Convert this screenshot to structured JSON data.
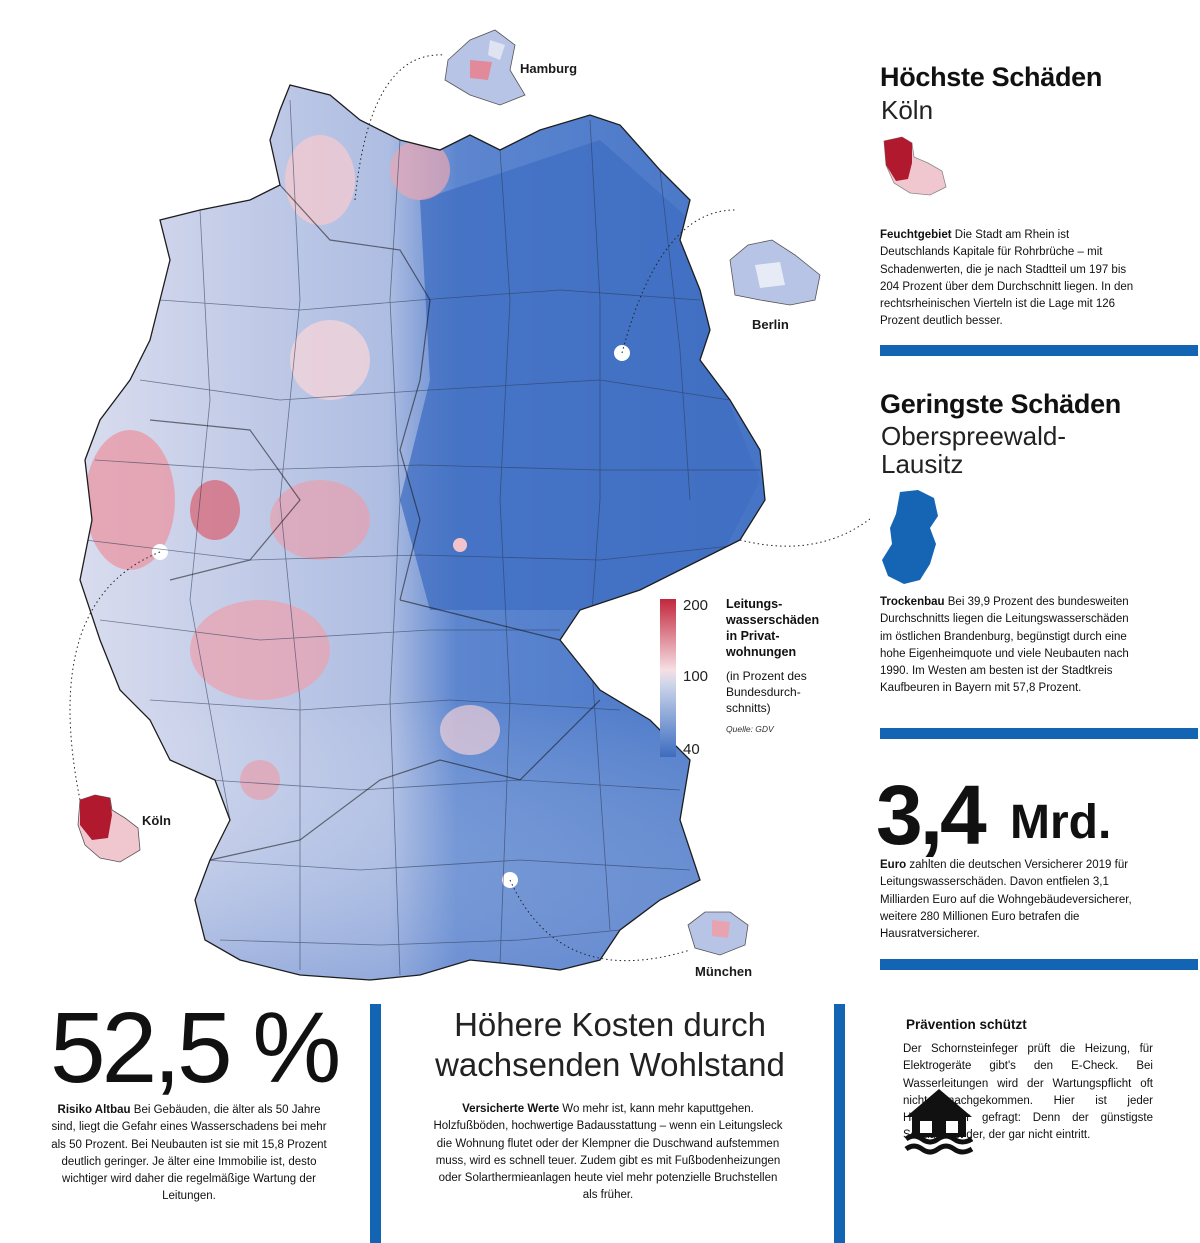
{
  "map": {
    "legend": {
      "title": "Leitungs­wasserschä­den in Privat­wohnungen",
      "subtitle": "(in Prozent des Bundesdurch­schnitts)",
      "source": "Quelle: GDV",
      "max": "200",
      "mid": "100",
      "min": "40",
      "colors": {
        "high": "#c2273c",
        "mid": "#f6dfe5",
        "low": "#3d6cc0"
      }
    },
    "city_labels": {
      "hamburg": "Hamburg",
      "berlin": "Berlin",
      "koeln": "Köln",
      "muenchen": "München"
    }
  },
  "highest": {
    "title": "Höchste Schäden",
    "place": "Köln",
    "lead": "Feuchtgebiet",
    "text": "Die Stadt am Rhein ist Deutschlands Kapitale für Rohrbrüche – mit Schadenwerten, die je nach Stadtteil um 197 bis 204 Prozent über dem Durchschnitt liegen. In den rechtsrheinischen Vierteln ist die Lage mit 126 Prozent deutlich besser."
  },
  "lowest": {
    "title": "Geringste Schäden",
    "place_line1": "Oberspreewald-",
    "place_line2": "Lausitz",
    "lead": "Trockenbau",
    "text": "Bei 39,9 Prozent des bundesweiten Durchschnitts liegen die Leitungswasserschäden im östlichen Brandenburg, begünstigt durch eine hohe Eigenheimquote und viele Neubauten nach 1990. Im Westen am besten ist der Stadtkreis Kaufbeuren in Bayern mit 57,8 Prozent."
  },
  "total": {
    "number": "3,4",
    "unit": "Mrd.",
    "lead": "Euro",
    "text": "zahlten die deutschen Versicherer 2019 für Leitungswasserschäden. Davon entfielen 3,1 Milliarden Euro auf die Wohngebäudeversicherer, weitere 280 Millionen Euro betrafen die Hausratversicherer."
  },
  "altbau": {
    "number": "52,5 %",
    "lead": "Risiko Altbau",
    "text": "Bei Gebäuden, die älter als 50 Jahre sind, liegt die Gefahr eines Wasserschadens bei mehr als 50 Prozent. Bei Neubauten ist sie mit 15,8 Prozent deutlich geringer. Je älter eine Immobilie ist, desto wichtiger wird daher die regelmäßige Wartung der Leitungen."
  },
  "costs": {
    "title_line1": "Höhere Kosten durch",
    "title_line2": "wachsenden Wohlstand",
    "lead": "Versicherte Werte",
    "text": "Wo mehr ist, kann mehr kaputtgehen. Holzfußböden, hochwertige Badausstattung – wenn ein Leitungsleck die Wohnung flutet oder der Klempner die Duschwand aufstemmen muss, wird es schnell teuer. Zudem gibt es mit Fußbodenheizungen oder Solarthermieanlagen heute viel mehr potenzielle Bruchstellen als früher."
  },
  "prevention": {
    "title": "Prävention schützt",
    "text": "Der Schornsteinfeger prüft die Heizung, für Elektrogeräte gibt's den E-Check. Bei Wasserleitungen wird der Wartungspflicht oft nicht nachgekommen. Hier ist jeder Hausbesitzer gefragt: Denn der günstigste Schaden ist der, der gar nicht eintritt.",
    "icon": "flooded-house-icon"
  },
  "accent_color": "#1464b4"
}
